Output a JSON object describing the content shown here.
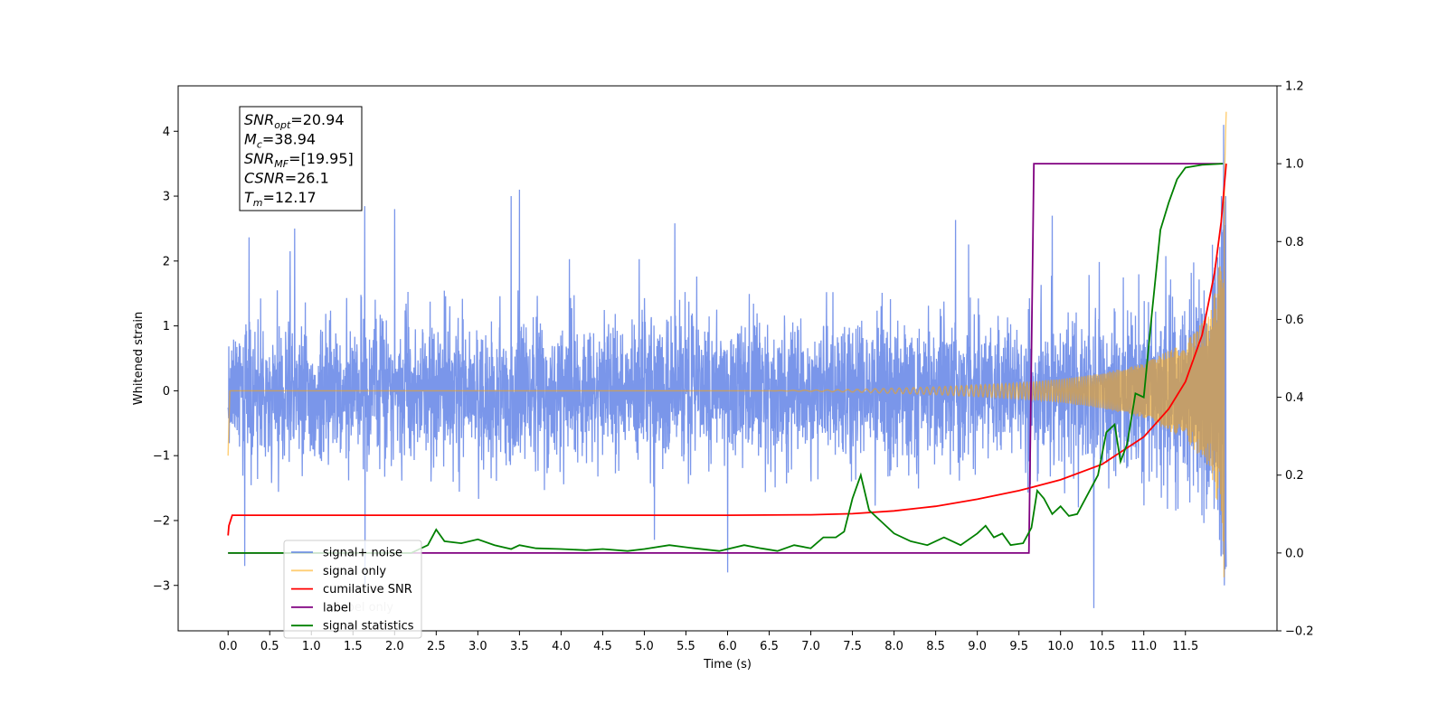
{
  "chart_data": {
    "type": "line",
    "xlabel": "Time (s)",
    "ylabel": "Whitened strain",
    "xlim": [
      -0.6,
      12.6
    ],
    "ylim": [
      -3.7,
      4.7
    ],
    "ylim_right": [
      -0.2,
      1.2
    ],
    "x_ticks": [
      "0.0",
      "0.5",
      "1.0",
      "1.5",
      "2.0",
      "2.5",
      "3.0",
      "3.5",
      "4.0",
      "4.5",
      "5.0",
      "5.5",
      "6.0",
      "6.5",
      "7.0",
      "7.5",
      "8.0",
      "8.5",
      "9.0",
      "9.5",
      "10.0",
      "10.5",
      "11.0",
      "11.5"
    ],
    "x_tick_values": [
      0.0,
      0.5,
      1.0,
      1.5,
      2.0,
      2.5,
      3.0,
      3.5,
      4.0,
      4.5,
      5.0,
      5.5,
      6.0,
      6.5,
      7.0,
      7.5,
      8.0,
      8.5,
      9.0,
      9.5,
      10.0,
      10.5,
      11.0,
      11.5
    ],
    "y_ticks": [
      "−3",
      "−2",
      "−1",
      "0",
      "1",
      "2",
      "3",
      "4"
    ],
    "y_tick_values": [
      -3,
      -2,
      -1,
      0,
      1,
      2,
      3,
      4
    ],
    "y_ticks_right": [
      "−0.2",
      "0.0",
      "0.2",
      "0.4",
      "0.6",
      "0.8",
      "1.0",
      "1.2"
    ],
    "y_tick_values_right": [
      -0.2,
      0.0,
      0.2,
      0.4,
      0.6,
      0.8,
      1.0,
      1.2
    ],
    "grid": false,
    "legend_placement": "lower-left",
    "legend": [
      "signal+ noise",
      "signal only",
      "cumilative SNR",
      "label",
      "signal statistics"
    ],
    "legend_overlap_text": [
      "label only"
    ],
    "annotation": {
      "lines": [
        {
          "main": "SNR",
          "sub": "opt",
          "rest": "=20.94"
        },
        {
          "main": "M",
          "sub": "c",
          "rest": "=38.94"
        },
        {
          "main": "SNR",
          "sub": "MF",
          "rest": "=[19.95]"
        },
        {
          "main": "CSNR",
          "sub": "",
          "rest": "=26.1"
        },
        {
          "main": "T",
          "sub": "m",
          "rest": "=12.17"
        }
      ]
    },
    "series": [
      {
        "name": "signal+ noise",
        "axis": "left",
        "color": "#4169E1",
        "opacity": 0.7,
        "t_range": [
          0,
          11.99
        ],
        "std": 0.85,
        "notable_peaks": [
          {
            "x": 3.5,
            "y": 3.1
          },
          {
            "x": 3.4,
            "y": 3.0
          },
          {
            "x": 0.8,
            "y": 2.5
          },
          {
            "x": 2.0,
            "y": 2.8
          },
          {
            "x": 9.9,
            "y": 2.7
          },
          {
            "x": 11.96,
            "y": 4.1
          },
          {
            "x": 10.4,
            "y": -3.35
          },
          {
            "x": 6.0,
            "y": -2.8
          },
          {
            "x": 0.2,
            "y": -2.7
          },
          {
            "x": 11.98,
            "y": -2.75
          }
        ]
      },
      {
        "name": "signal only",
        "axis": "left",
        "color": "#FFA500",
        "opacity": 0.55,
        "points": [
          [
            0,
            -1.0
          ],
          [
            0.02,
            0
          ],
          [
            6.5,
            0
          ],
          [
            7.5,
            0.02
          ],
          [
            8.5,
            0.06
          ],
          [
            9.5,
            0.12
          ],
          [
            10.0,
            0.18
          ],
          [
            10.5,
            0.27
          ],
          [
            11.0,
            0.42
          ],
          [
            11.5,
            0.75
          ],
          [
            11.8,
            1.2
          ],
          [
            11.95,
            2.2
          ],
          [
            11.99,
            4.3
          ]
        ]
      },
      {
        "name": "cumilative SNR",
        "axis": "right",
        "color": "#FF0000",
        "points": [
          [
            0,
            0.045
          ],
          [
            0.01,
            0.07
          ],
          [
            0.05,
            0.097
          ],
          [
            2,
            0.097
          ],
          [
            4,
            0.097
          ],
          [
            6,
            0.097
          ],
          [
            7,
            0.098
          ],
          [
            7.5,
            0.101
          ],
          [
            8,
            0.108
          ],
          [
            8.5,
            0.12
          ],
          [
            9,
            0.138
          ],
          [
            9.5,
            0.16
          ],
          [
            10,
            0.188
          ],
          [
            10.5,
            0.228
          ],
          [
            11,
            0.298
          ],
          [
            11.3,
            0.37
          ],
          [
            11.5,
            0.44
          ],
          [
            11.7,
            0.56
          ],
          [
            11.85,
            0.72
          ],
          [
            11.93,
            0.85
          ],
          [
            11.97,
            0.95
          ],
          [
            11.99,
            1.0
          ]
        ]
      },
      {
        "name": "label",
        "axis": "right",
        "color": "#800080",
        "points": [
          [
            0,
            0.0
          ],
          [
            9.62,
            0.0
          ],
          [
            9.68,
            1.0
          ],
          [
            11.95,
            1.0
          ]
        ]
      },
      {
        "name": "signal statistics",
        "axis": "right",
        "color": "#008000",
        "points": [
          [
            0,
            0.0
          ],
          [
            2.2,
            0.0
          ],
          [
            2.3,
            0.01
          ],
          [
            2.4,
            0.02
          ],
          [
            2.5,
            0.06
          ],
          [
            2.6,
            0.03
          ],
          [
            2.8,
            0.025
          ],
          [
            3.0,
            0.035
          ],
          [
            3.2,
            0.02
          ],
          [
            3.4,
            0.01
          ],
          [
            3.5,
            0.02
          ],
          [
            3.7,
            0.012
          ],
          [
            4.0,
            0.01
          ],
          [
            4.3,
            0.007
          ],
          [
            4.5,
            0.01
          ],
          [
            4.8,
            0.005
          ],
          [
            5.0,
            0.01
          ],
          [
            5.3,
            0.02
          ],
          [
            5.6,
            0.012
          ],
          [
            5.9,
            0.005
          ],
          [
            6.2,
            0.02
          ],
          [
            6.4,
            0.012
          ],
          [
            6.6,
            0.005
          ],
          [
            6.8,
            0.02
          ],
          [
            7.0,
            0.012
          ],
          [
            7.15,
            0.04
          ],
          [
            7.3,
            0.04
          ],
          [
            7.4,
            0.055
          ],
          [
            7.5,
            0.14
          ],
          [
            7.6,
            0.2
          ],
          [
            7.7,
            0.11
          ],
          [
            7.8,
            0.09
          ],
          [
            8.0,
            0.05
          ],
          [
            8.2,
            0.03
          ],
          [
            8.4,
            0.02
          ],
          [
            8.6,
            0.04
          ],
          [
            8.8,
            0.02
          ],
          [
            9.0,
            0.05
          ],
          [
            9.1,
            0.07
          ],
          [
            9.2,
            0.04
          ],
          [
            9.3,
            0.05
          ],
          [
            9.4,
            0.02
          ],
          [
            9.55,
            0.025
          ],
          [
            9.65,
            0.065
          ],
          [
            9.72,
            0.16
          ],
          [
            9.8,
            0.14
          ],
          [
            9.9,
            0.1
          ],
          [
            10.0,
            0.12
          ],
          [
            10.1,
            0.095
          ],
          [
            10.2,
            0.1
          ],
          [
            10.3,
            0.14
          ],
          [
            10.45,
            0.2
          ],
          [
            10.55,
            0.31
          ],
          [
            10.65,
            0.33
          ],
          [
            10.72,
            0.235
          ],
          [
            10.8,
            0.28
          ],
          [
            10.9,
            0.41
          ],
          [
            11.0,
            0.4
          ],
          [
            11.1,
            0.62
          ],
          [
            11.2,
            0.83
          ],
          [
            11.3,
            0.9
          ],
          [
            11.4,
            0.96
          ],
          [
            11.5,
            0.99
          ],
          [
            11.7,
            0.997
          ],
          [
            11.95,
            1.0
          ]
        ]
      }
    ]
  }
}
